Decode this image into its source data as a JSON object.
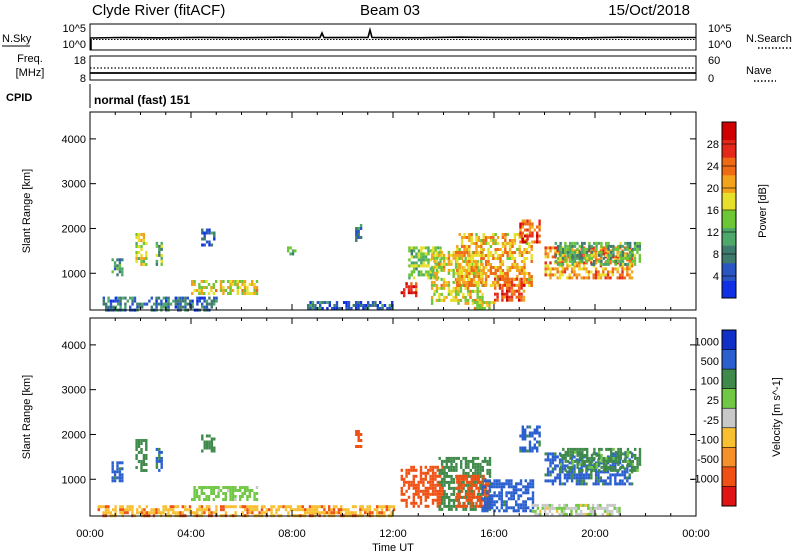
{
  "header": {
    "station": "Clyde River (fitACF)",
    "beam": "Beam 03",
    "date": "15/Oct/2018"
  },
  "summary_panel": {
    "nsky_label": "N.Sky",
    "nsearch_label": "N.Search",
    "noise_tick_top": "10^5",
    "noise_tick_bottom": "10^0",
    "freq_label_1": "Freq.",
    "freq_label_2": "[MHz]",
    "freq_tick_top": "18",
    "freq_tick_bottom": "8",
    "nave_label": "Nave",
    "nave_tick_top": "60",
    "nave_tick_bottom": "0",
    "cpid_label": "CPID",
    "cpid_value": "normal (fast) 151"
  },
  "colors": {
    "power_scale": [
      "#1030e6",
      "#2a56c4",
      "#3f7a6e",
      "#4ea86a",
      "#6cc636",
      "#e6e02a",
      "#f3a21b",
      "#ee6a14",
      "#e4281a",
      "#d00000"
    ],
    "velocity_scale": [
      "#e01414",
      "#f05014",
      "#f5902a",
      "#f8c030",
      "#c8c8c8",
      "#70c844",
      "#3f8a4a",
      "#2a5fd0",
      "#1030c8"
    ]
  },
  "chart_data": [
    {
      "type": "heatmap",
      "panel": "power",
      "ylabel": "Slant Range [km]",
      "xlabel": "",
      "x_ticks": [
        "00:00",
        "04:00",
        "08:00",
        "12:00",
        "16:00",
        "20:00",
        "00:00"
      ],
      "y_ticks": [
        "1000",
        "2000",
        "3000",
        "4000"
      ],
      "ylim": [
        180,
        4600
      ],
      "x_range_hours": [
        0,
        24
      ],
      "colorbar_label": "Power [dB]",
      "colorbar_ticks": [
        "4",
        "8",
        "12",
        "16",
        "20",
        "24",
        "28"
      ],
      "colorbar_range": [
        0,
        32
      ],
      "grid": false,
      "echo_regions": [
        {
          "t": [
            0.85,
            1.25
          ],
          "r": [
            950,
            1400
          ],
          "v": 9
        },
        {
          "t": [
            1.8,
            2.2
          ],
          "r": [
            1200,
            1900
          ],
          "v": 17
        },
        {
          "t": [
            2.6,
            2.85
          ],
          "r": [
            1200,
            1700
          ],
          "v": 13
        },
        {
          "t": [
            4.4,
            4.9
          ],
          "r": [
            1650,
            2000
          ],
          "v": 6
        },
        {
          "t": [
            4.0,
            6.6
          ],
          "r": [
            550,
            850
          ],
          "v": 18
        },
        {
          "t": [
            0.5,
            5.0
          ],
          "r": [
            200,
            480
          ],
          "v": 7
        },
        {
          "t": [
            7.8,
            8.1
          ],
          "r": [
            1400,
            1600
          ],
          "v": 12
        },
        {
          "t": [
            10.5,
            10.7
          ],
          "r": [
            1700,
            2100
          ],
          "v": 9
        },
        {
          "t": [
            12.3,
            12.9
          ],
          "r": [
            500,
            800
          ],
          "v": 26
        },
        {
          "t": [
            12.6,
            13.9
          ],
          "r": [
            900,
            1600
          ],
          "v": 14
        },
        {
          "t": [
            13.5,
            15.5
          ],
          "r": [
            300,
            1500
          ],
          "v": 18
        },
        {
          "t": [
            14.5,
            17.5
          ],
          "r": [
            700,
            1900
          ],
          "v": 20
        },
        {
          "t": [
            16.0,
            17.2
          ],
          "r": [
            400,
            900
          ],
          "v": 25
        },
        {
          "t": [
            17.0,
            17.8
          ],
          "r": [
            1700,
            2200
          ],
          "v": 25
        },
        {
          "t": [
            18.0,
            21.5
          ],
          "r": [
            900,
            1600
          ],
          "v": 22
        },
        {
          "t": [
            18.4,
            21.8
          ],
          "r": [
            1200,
            1700
          ],
          "v": 12
        },
        {
          "t": [
            8.5,
            12.0
          ],
          "r": [
            200,
            380
          ],
          "v": 6
        },
        {
          "t": [
            15.2,
            16.0
          ],
          "r": [
            200,
            380
          ],
          "v": 18
        }
      ]
    },
    {
      "type": "heatmap",
      "panel": "velocity",
      "ylabel": "Slant Range [km]",
      "xlabel": "Time UT",
      "x_ticks": [
        "00:00",
        "04:00",
        "08:00",
        "12:00",
        "16:00",
        "20:00",
        "00:00"
      ],
      "y_ticks": [
        "1000",
        "2000",
        "3000",
        "4000"
      ],
      "ylim": [
        180,
        4600
      ],
      "x_range_hours": [
        0,
        24
      ],
      "colorbar_label": "Velocity [m s^-1]",
      "colorbar_ticks": [
        "1000",
        "500",
        "100",
        "25",
        "-25",
        "-100",
        "-500",
        "-1000"
      ],
      "colorbar_range": [
        -1000,
        1000
      ],
      "grid": false,
      "echo_regions": [
        {
          "t": [
            0.85,
            1.25
          ],
          "r": [
            950,
            1400
          ],
          "v": 800
        },
        {
          "t": [
            1.8,
            2.2
          ],
          "r": [
            1200,
            1900
          ],
          "v": 300
        },
        {
          "t": [
            2.6,
            2.85
          ],
          "r": [
            1200,
            1700
          ],
          "v": 600
        },
        {
          "t": [
            4.4,
            4.9
          ],
          "r": [
            1650,
            2000
          ],
          "v": 200
        },
        {
          "t": [
            4.0,
            6.6
          ],
          "r": [
            550,
            850
          ],
          "v": 60
        },
        {
          "t": [
            0.3,
            12.0
          ],
          "r": [
            200,
            420
          ],
          "v": -80
        },
        {
          "t": [
            10.5,
            10.7
          ],
          "r": [
            1700,
            2100
          ],
          "v": -300
        },
        {
          "t": [
            12.3,
            14.0
          ],
          "r": [
            400,
            1300
          ],
          "v": -300
        },
        {
          "t": [
            13.8,
            15.8
          ],
          "r": [
            300,
            1500
          ],
          "v": 200
        },
        {
          "t": [
            14.5,
            15.8
          ],
          "r": [
            400,
            1100
          ],
          "v": -300
        },
        {
          "t": [
            15.5,
            17.5
          ],
          "r": [
            300,
            1000
          ],
          "v": 900
        },
        {
          "t": [
            17.0,
            17.8
          ],
          "r": [
            1600,
            2200
          ],
          "v": 800
        },
        {
          "t": [
            18.0,
            21.5
          ],
          "r": [
            900,
            1600
          ],
          "v": 700
        },
        {
          "t": [
            18.6,
            21.8
          ],
          "r": [
            1200,
            1700
          ],
          "v": 150
        },
        {
          "t": [
            17.5,
            21.0
          ],
          "r": [
            200,
            450
          ],
          "v": 10
        }
      ]
    }
  ]
}
